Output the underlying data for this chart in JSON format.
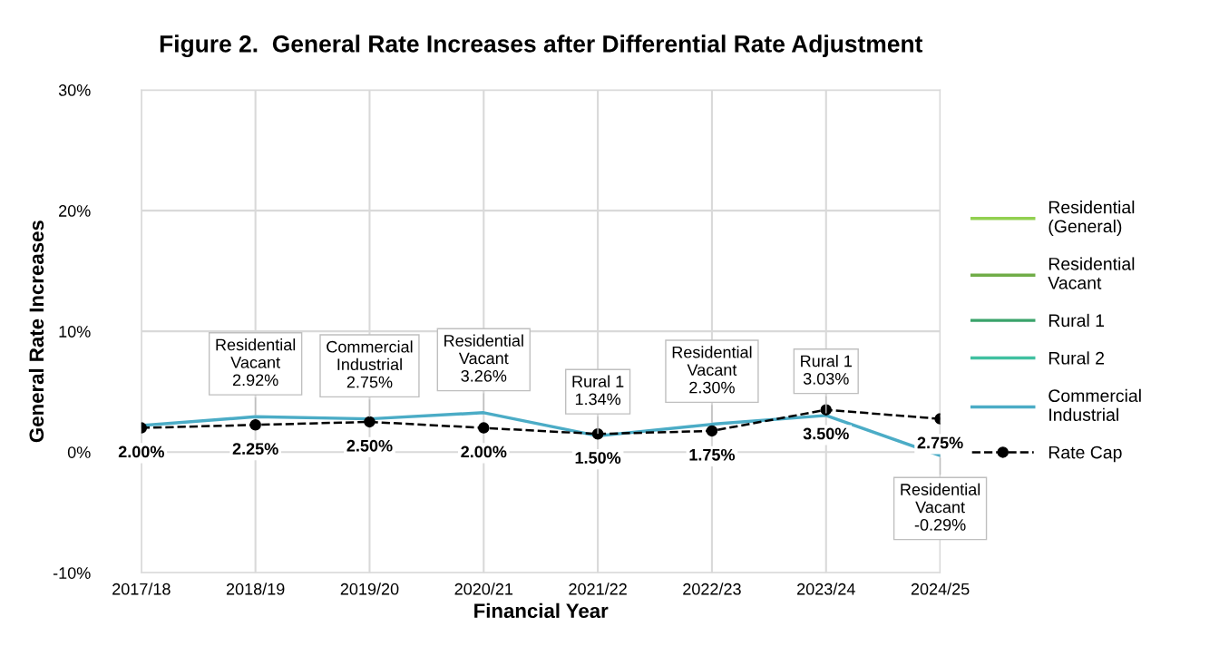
{
  "chart_data": {
    "type": "line",
    "title": "Figure 2.  General Rate Increases after Differential Rate Adjustment",
    "xlabel": "Financial Year",
    "ylabel": "General Rate Increases",
    "categories": [
      "2017/18",
      "2018/19",
      "2019/20",
      "2020/21",
      "2021/22",
      "2022/23",
      "2023/24",
      "2024/25"
    ],
    "series": [
      {
        "name": "Residential\n(General)",
        "color": "#92d050",
        "values": [
          null,
          null,
          null,
          null,
          null,
          null,
          null,
          null
        ]
      },
      {
        "name": "Residential\nVacant",
        "color": "#70ad47",
        "values": [
          null,
          null,
          null,
          null,
          null,
          null,
          null,
          null
        ]
      },
      {
        "name": "Rural 1",
        "color": "#3aa36b",
        "values": [
          null,
          null,
          null,
          null,
          null,
          null,
          null,
          null
        ]
      },
      {
        "name": "Rural 2",
        "color": "#40c0a0",
        "values": [
          null,
          null,
          null,
          null,
          null,
          null,
          null,
          null
        ]
      },
      {
        "name": "Commercial\nIndustrial",
        "color": "#4bacc6",
        "values": [
          2.2,
          2.92,
          2.75,
          3.26,
          1.34,
          2.3,
          3.03,
          -0.29
        ]
      },
      {
        "name": "Rate Cap",
        "color": "#000000",
        "line_style": "dashed",
        "marker": "circle",
        "values": [
          2.0,
          2.25,
          2.5,
          2.0,
          1.5,
          1.75,
          3.5,
          2.75
        ],
        "value_labels": [
          "2.00%",
          "2.25%",
          "2.50%",
          "2.00%",
          "1.50%",
          "1.75%",
          "3.50%",
          "2.75%"
        ]
      }
    ],
    "ylim": [
      -10,
      30
    ],
    "yticks": [
      {
        "value": -10,
        "label": "-10%"
      },
      {
        "value": 0,
        "label": "0%"
      },
      {
        "value": 10,
        "label": "10%"
      },
      {
        "value": 20,
        "label": "20%"
      },
      {
        "value": 30,
        "label": "30%"
      }
    ],
    "grid": true,
    "legend": "right",
    "annotations": [
      {
        "text": "Residential\nVacant\n2.92%",
        "x": "2018/19",
        "y": 2.92
      },
      {
        "text": "Commercial\nIndustrial\n2.75%",
        "x": "2019/20",
        "y": 2.75
      },
      {
        "text": "Residential\nVacant\n3.26%",
        "x": "2020/21",
        "y": 3.26
      },
      {
        "text": "Rural 1\n1.34%",
        "x": "2021/22",
        "y": 1.34
      },
      {
        "text": "Residential\nVacant\n2.30%",
        "x": "2022/23",
        "y": 2.3
      },
      {
        "text": "Rural 1\n3.03%",
        "x": "2023/24",
        "y": 3.03
      },
      {
        "text": "Residential\nVacant\n-0.29%",
        "x": "2024/25",
        "y": -0.29
      }
    ]
  }
}
